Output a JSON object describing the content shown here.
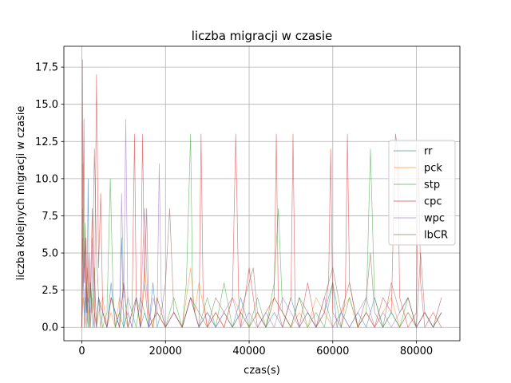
{
  "chart_data": {
    "type": "line",
    "title": "liczba migracji w czasie",
    "xlabel": "czas(s)",
    "ylabel": "liczba kolejnych migracji w czasie",
    "xlim": [
      -4300,
      90400
    ],
    "ylim": [
      -0.9,
      18.9
    ],
    "xticks": [
      0,
      20000,
      40000,
      60000,
      80000
    ],
    "xtick_labels": [
      "0",
      "20000",
      "40000",
      "60000",
      "80000"
    ],
    "yticks": [
      0.0,
      2.5,
      5.0,
      7.5,
      10.0,
      12.5,
      15.0,
      17.5
    ],
    "ytick_labels": [
      "0.0",
      "2.5",
      "5.0",
      "7.5",
      "10.0",
      "12.5",
      "15.0",
      "17.5"
    ],
    "grid": true,
    "legend": {
      "position": "right",
      "entries": [
        "rr",
        "pck",
        "stp",
        "cpc",
        "wpc",
        "lbCR"
      ]
    },
    "series": [
      {
        "name": "rr",
        "color": "#1f77b4",
        "x": [
          0,
          200,
          400,
          600,
          900,
          1200,
          1500,
          1800,
          2100,
          2400,
          2700,
          3000,
          3500,
          4000,
          5000,
          6000,
          7000,
          8000,
          9000,
          9500,
          10000,
          11000,
          12000,
          13000,
          14000,
          15000,
          16000,
          17000,
          18000,
          19000,
          20000,
          22000,
          24000,
          26000,
          28000,
          30000,
          32000,
          34000,
          36000,
          38000,
          40000,
          42000,
          44000,
          46000,
          48000,
          50000,
          52000,
          54000,
          56000,
          58000,
          60000,
          61000,
          62000,
          64000,
          66000,
          68000,
          70000,
          72000,
          74000,
          76000,
          78000,
          80000,
          82000,
          84000,
          86000
        ],
        "y": [
          0,
          6,
          3,
          0,
          2,
          1,
          10,
          0,
          3,
          1,
          0,
          1,
          0,
          2,
          1,
          0,
          3,
          0,
          1,
          6,
          0,
          1,
          0,
          2,
          0,
          1,
          0,
          3,
          0,
          1,
          0,
          1,
          0,
          2,
          0,
          1,
          0,
          1,
          0,
          2,
          0,
          1,
          0,
          1,
          0,
          2,
          0,
          1,
          0,
          1,
          3,
          0,
          1,
          0,
          1,
          0,
          2,
          0,
          1,
          0,
          1,
          0,
          1,
          0,
          1
        ]
      },
      {
        "name": "pck",
        "color": "#ff7f0e",
        "x": [
          0,
          300,
          600,
          900,
          1200,
          1500,
          2000,
          2500,
          3000,
          3500,
          4000,
          5000,
          6000,
          7000,
          8000,
          9000,
          10000,
          11000,
          12000,
          13000,
          14000,
          15000,
          16000,
          17000,
          18000,
          19000,
          20000,
          22000,
          24000,
          25000,
          26000,
          27000,
          28000,
          30000,
          32000,
          34000,
          36000,
          38000,
          40000,
          42000,
          44000,
          46000,
          48000,
          50000,
          52000,
          54000,
          56000,
          58000,
          60000,
          62000,
          64000,
          66000,
          68000,
          70000,
          72000,
          74000,
          76000,
          78000,
          80000,
          82000,
          84000,
          86000
        ],
        "y": [
          0,
          2,
          1,
          0,
          3,
          1,
          0,
          2,
          1,
          0,
          1,
          2,
          0,
          1,
          0,
          2,
          1,
          0,
          1,
          2,
          0,
          4,
          1,
          0,
          2,
          1,
          0,
          1,
          0,
          2,
          4,
          1,
          3,
          0,
          1,
          0,
          2,
          1,
          0,
          1,
          0,
          2,
          1,
          0,
          1,
          0,
          2,
          1,
          0,
          1,
          2,
          0,
          1,
          0,
          1,
          2,
          0,
          1,
          0,
          1,
          0,
          2
        ]
      },
      {
        "name": "stp",
        "color": "#2ca02c",
        "x": [
          0,
          250,
          500,
          800,
          1100,
          1500,
          2000,
          2500,
          3000,
          3500,
          4000,
          5000,
          6000,
          6800,
          7500,
          8000,
          9000,
          10000,
          11000,
          12000,
          13000,
          14000,
          15000,
          16000,
          18000,
          20000,
          22000,
          24000,
          25000,
          26000,
          26500,
          27000,
          28000,
          30000,
          32000,
          34000,
          36000,
          38000,
          40000,
          42000,
          44000,
          46000,
          47000,
          48000,
          50000,
          52000,
          54000,
          56000,
          58000,
          60000,
          62000,
          64000,
          66000,
          68000,
          69000,
          70000,
          72000,
          74000,
          76000,
          78000,
          80000,
          82000,
          84000,
          86000
        ],
        "y": [
          0,
          11,
          4,
          7,
          2,
          0,
          3,
          1,
          4,
          0,
          2,
          0,
          1,
          10,
          2,
          0,
          1,
          0,
          2,
          1,
          0,
          2,
          1,
          0,
          1,
          0,
          2,
          0,
          3,
          13,
          2,
          1,
          0,
          2,
          0,
          3,
          0,
          1,
          0,
          2,
          0,
          3,
          8,
          1,
          0,
          2,
          0,
          1,
          0,
          3,
          0,
          2,
          0,
          1,
          12,
          2,
          0,
          1,
          0,
          2,
          0,
          1,
          0,
          1
        ]
      },
      {
        "name": "cpc",
        "color": "#d62728",
        "x": [
          0,
          150,
          300,
          500,
          700,
          1000,
          1300,
          1700,
          2000,
          2500,
          3000,
          3500,
          4000,
          4500,
          5000,
          6000,
          7000,
          8000,
          9000,
          10000,
          11000,
          12000,
          12600,
          13000,
          14000,
          14500,
          15000,
          16000,
          18000,
          20000,
          22000,
          24000,
          26000,
          28000,
          28500,
          29000,
          30000,
          32000,
          34000,
          36000,
          36800,
          37500,
          38000,
          40000,
          42000,
          44000,
          46000,
          46500,
          47000,
          48000,
          50000,
          50500,
          51000,
          52000,
          54000,
          56000,
          58000,
          59000,
          59500,
          60000,
          62000,
          63000,
          63500,
          64000,
          66000,
          68000,
          70000,
          72000,
          74000,
          75000,
          75500,
          76000,
          78000,
          80000,
          80500,
          81000,
          82000,
          84000,
          86000
        ],
        "y": [
          0,
          18,
          7,
          14,
          3,
          6,
          1,
          5,
          2,
          8,
          0,
          17,
          4,
          9,
          1,
          0,
          2,
          1,
          0,
          3,
          0,
          1,
          13,
          2,
          0,
          13,
          3,
          0,
          1,
          0,
          1,
          0,
          2,
          0,
          13,
          2,
          0,
          1,
          0,
          2,
          13,
          2,
          0,
          4,
          0,
          1,
          2,
          13,
          1,
          0,
          2,
          13,
          1,
          0,
          3,
          0,
          1,
          3,
          12,
          1,
          0,
          2,
          13,
          3,
          0,
          1,
          0,
          2,
          1,
          13,
          12,
          2,
          0,
          1,
          12,
          3,
          0,
          1,
          0
        ]
      },
      {
        "name": "wpc",
        "color": "#9467bd",
        "x": [
          0,
          300,
          600,
          900,
          1200,
          1500,
          2000,
          2500,
          3000,
          3500,
          4000,
          5000,
          6000,
          7000,
          8000,
          9000,
          9500,
          10000,
          10500,
          11000,
          12000,
          13000,
          14000,
          15000,
          16000,
          17000,
          18000,
          18500,
          19000,
          20000,
          22000,
          24000,
          26000,
          28000,
          30000,
          32000,
          34000,
          36000,
          38000,
          40000,
          42000,
          44000,
          46000,
          48000,
          50000,
          52000,
          54000,
          56000,
          58000,
          60000,
          62000,
          64000,
          66000,
          68000,
          70000,
          72000,
          74000,
          76000,
          78000,
          80000,
          82000,
          84000,
          86000
        ],
        "y": [
          0,
          4,
          1,
          3,
          0,
          2,
          1,
          6,
          3,
          0,
          2,
          1,
          0,
          2,
          1,
          0,
          9,
          2,
          14,
          1,
          0,
          2,
          1,
          8,
          0,
          2,
          1,
          11,
          2,
          0,
          1,
          0,
          2,
          0,
          1,
          0,
          1,
          2,
          0,
          1,
          0,
          1,
          0,
          2,
          1,
          0,
          1,
          0,
          2,
          0,
          1,
          0,
          1,
          2,
          0,
          1,
          0,
          1,
          2,
          0,
          1,
          0,
          2
        ]
      },
      {
        "name": "lbCR",
        "color": "#8c564b",
        "x": [
          0,
          250,
          500,
          750,
          1000,
          1300,
          1600,
          2000,
          2500,
          3000,
          3500,
          4000,
          4500,
          5000,
          6000,
          7000,
          8000,
          9000,
          10000,
          11000,
          12000,
          13000,
          14000,
          15000,
          15500,
          16000,
          17000,
          18000,
          19000,
          20000,
          21000,
          22000,
          24000,
          26000,
          28000,
          30000,
          32000,
          34000,
          36000,
          38000,
          40000,
          41000,
          42000,
          44000,
          46000,
          48000,
          50000,
          52000,
          54000,
          56000,
          58000,
          60000,
          62000,
          64000,
          66000,
          68000,
          69000,
          70000,
          72000,
          74000,
          76000,
          78000,
          80000,
          81000,
          82000,
          84000,
          86000
        ],
        "y": [
          0,
          8,
          3,
          6,
          1,
          4,
          2,
          0,
          3,
          12,
          5,
          2,
          0,
          1,
          0,
          2,
          1,
          0,
          3,
          0,
          1,
          2,
          0,
          3,
          8,
          1,
          0,
          2,
          1,
          3,
          8,
          1,
          0,
          2,
          1,
          0,
          2,
          1,
          0,
          1,
          3,
          4,
          1,
          0,
          2,
          1,
          0,
          2,
          1,
          0,
          2,
          4,
          1,
          3,
          0,
          2,
          5,
          1,
          0,
          3,
          1,
          2,
          0,
          5,
          1,
          0,
          1
        ]
      }
    ]
  }
}
